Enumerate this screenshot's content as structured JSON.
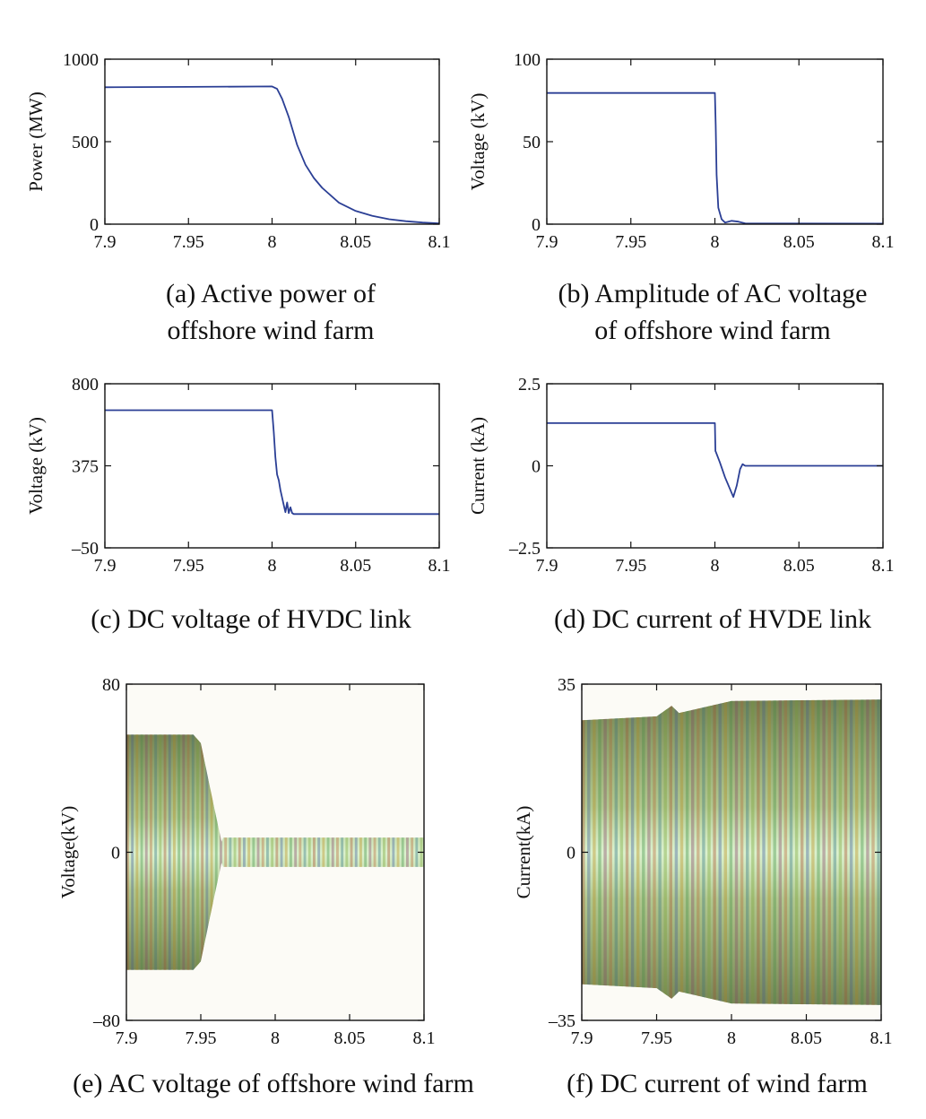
{
  "chart_data": [
    {
      "id": "a",
      "type": "line",
      "caption_lines": [
        "(a) Active power of",
        "offshore wind farm"
      ],
      "ylabel": "Power (MW)",
      "xlabel": "",
      "xlim": [
        7.9,
        8.1
      ],
      "ylim": [
        0,
        1000
      ],
      "xticks": [
        "7.9",
        "7.95",
        "8",
        "8.05",
        "8.1"
      ],
      "yticks": [
        {
          "v": 0,
          "label": "0"
        },
        {
          "v": 500,
          "label": "500"
        },
        {
          "v": 1000,
          "label": "1000"
        }
      ],
      "color": "#2b3f95",
      "series": [
        {
          "name": "Active power",
          "x": [
            7.9,
            7.95,
            8.0,
            8.003,
            8.006,
            8.01,
            8.015,
            8.02,
            8.025,
            8.03,
            8.04,
            8.05,
            8.06,
            8.07,
            8.08,
            8.09,
            8.1
          ],
          "y": [
            830,
            832,
            835,
            820,
            760,
            650,
            480,
            360,
            280,
            220,
            130,
            80,
            50,
            30,
            18,
            10,
            5
          ]
        }
      ]
    },
    {
      "id": "b",
      "type": "line",
      "caption_lines": [
        "(b) Amplitude of AC voltage",
        "of offshore wind farm"
      ],
      "ylabel": "Voltage (kV)",
      "xlabel": "",
      "xlim": [
        7.9,
        8.1
      ],
      "ylim": [
        0,
        100
      ],
      "xticks": [
        "7.9",
        "7.95",
        "8",
        "8.05",
        "8.1"
      ],
      "yticks": [
        {
          "v": 0,
          "label": "0"
        },
        {
          "v": 50,
          "label": "50"
        },
        {
          "v": 100,
          "label": "100"
        }
      ],
      "color": "#2b3f95",
      "series": [
        {
          "name": "AC voltage amplitude",
          "x": [
            7.9,
            8.0,
            8.0005,
            8.001,
            8.002,
            8.004,
            8.006,
            8.01,
            8.014,
            8.018,
            8.05,
            8.1
          ],
          "y": [
            79.5,
            79.5,
            60,
            30,
            10,
            3,
            1,
            2,
            1.5,
            0.5,
            0.4,
            0.3
          ]
        }
      ]
    },
    {
      "id": "c",
      "type": "line",
      "caption_lines": [
        "(c) DC voltage of HVDC link"
      ],
      "ylabel": "Voltage (kV)",
      "xlabel": "",
      "xlim": [
        7.9,
        8.1
      ],
      "ylim": [
        -50,
        800
      ],
      "xticks": [
        "7.9",
        "7.95",
        "8",
        "8.05",
        "8.1"
      ],
      "yticks": [
        {
          "v": -50,
          "label": "–50"
        },
        {
          "v": 375,
          "label": "375"
        },
        {
          "v": 800,
          "label": "800"
        }
      ],
      "color": "#2b3f95",
      "series": [
        {
          "name": "DC voltage",
          "x": [
            7.9,
            8.0,
            8.001,
            8.002,
            8.003,
            8.004,
            8.005,
            8.007,
            8.008,
            8.009,
            8.01,
            8.011,
            8.012,
            8.013,
            8.014,
            8.05,
            8.1
          ],
          "y": [
            663,
            663,
            550,
            420,
            330,
            300,
            250,
            170,
            135,
            185,
            130,
            160,
            130,
            125,
            125,
            125,
            125
          ]
        }
      ]
    },
    {
      "id": "d",
      "type": "line",
      "caption_lines": [
        "(d) DC current of HVDE link"
      ],
      "ylabel": "Current (kA)",
      "xlabel": "",
      "xlim": [
        7.9,
        8.1
      ],
      "ylim": [
        -2.5,
        2.5
      ],
      "xticks": [
        "7.9",
        "7.95",
        "8",
        "8.05",
        "8.1"
      ],
      "yticks": [
        {
          "v": -2.5,
          "label": "–2.5"
        },
        {
          "v": 0,
          "label": "0"
        },
        {
          "v": 2.5,
          "label": "2.5"
        }
      ],
      "color": "#2b3f95",
      "series": [
        {
          "name": "DC current",
          "x": [
            7.9,
            8.0,
            8.0003,
            8.0006,
            8.003,
            8.006,
            8.011,
            8.013,
            8.015,
            8.0165,
            8.018,
            8.05,
            8.1
          ],
          "y": [
            1.3,
            1.3,
            0.45,
            0.42,
            0.1,
            -0.35,
            -0.95,
            -0.6,
            -0.1,
            0.05,
            0.0,
            0.0,
            0.0
          ]
        }
      ]
    },
    {
      "id": "e",
      "type": "area",
      "caption_lines": [
        "(e) AC voltage of offshore wind farm"
      ],
      "ylabel": "Voltage(kV)",
      "xlabel": "",
      "xlim": [
        7.9,
        8.1
      ],
      "ylim": [
        -80,
        80
      ],
      "xticks": [
        "7.9",
        "7.95",
        "8",
        "8.05",
        "8.1"
      ],
      "yticks": [
        {
          "v": -80,
          "label": "–80"
        },
        {
          "v": 0,
          "label": "0"
        },
        {
          "v": 80,
          "label": "80"
        }
      ],
      "series": [
        {
          "name": "AC voltage envelope",
          "x": [
            7.9,
            7.945,
            7.95,
            7.955,
            7.96,
            7.964,
            7.965,
            8.1
          ],
          "upper": [
            56,
            56,
            52,
            35,
            18,
            5,
            7,
            7
          ],
          "lower": [
            -56,
            -56,
            -52,
            -35,
            -18,
            -5,
            -7,
            -7
          ]
        }
      ]
    },
    {
      "id": "f",
      "type": "area",
      "caption_lines": [
        "(f) DC current of wind farm"
      ],
      "ylabel": "Current(kA)",
      "xlabel": "",
      "xlim": [
        7.9,
        8.1
      ],
      "ylim": [
        -35,
        35
      ],
      "xticks": [
        "7.9",
        "7.95",
        "8",
        "8.05",
        "8.1"
      ],
      "yticks": [
        {
          "v": -35,
          "label": "–35"
        },
        {
          "v": 0,
          "label": "0"
        },
        {
          "v": 35,
          "label": "35"
        }
      ],
      "series": [
        {
          "name": "DC current envelope",
          "x": [
            7.9,
            7.95,
            7.96,
            7.965,
            8.0,
            8.1
          ],
          "upper": [
            27.5,
            28.3,
            30.5,
            29.0,
            31.5,
            31.8
          ],
          "lower": [
            -27.5,
            -28.3,
            -30.5,
            -29.0,
            -31.5,
            -31.8
          ]
        }
      ]
    }
  ]
}
